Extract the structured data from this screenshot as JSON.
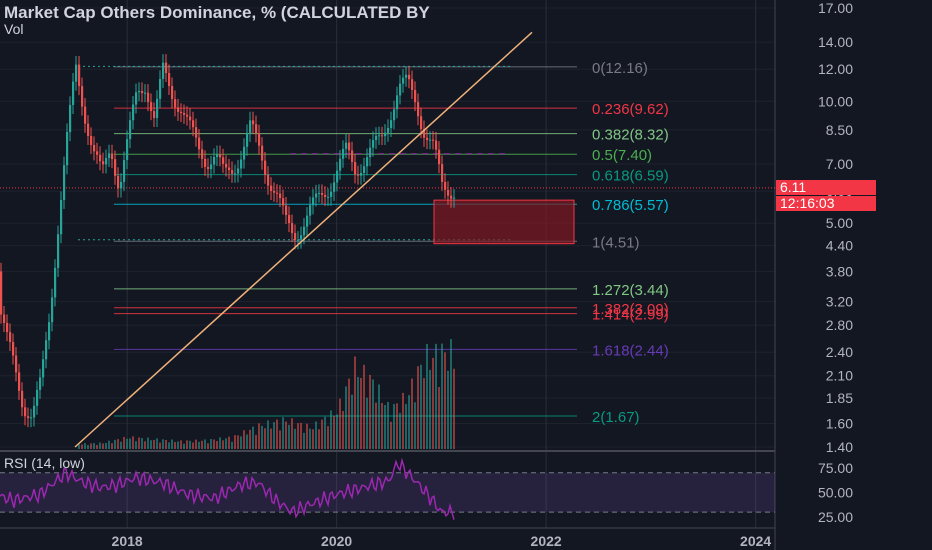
{
  "header": {
    "title": "Market Cap Others Dominance, % (CALCULATED BY",
    "volume_label": "Vol",
    "rsi_label": "RSI (14, low)"
  },
  "price_tags": {
    "last_price": "6.11",
    "countdown": "12:16:03"
  },
  "colors": {
    "background": "#131722",
    "up": "#26a69a",
    "down": "#ef5350",
    "rsi_line": "#9c27b0",
    "trendline": "#f0b27a",
    "zone": "#801922"
  },
  "chart_data": {
    "type": "candlestick",
    "title": "Market Cap Others Dominance, % (CALCULATED BY",
    "scale": "log",
    "ylim": [
      1.4,
      17.0
    ],
    "y_ticks": [
      "17.00",
      "14.00",
      "12.00",
      "10.00",
      "8.50",
      "7.00",
      "6.00",
      "5.00",
      "4.40",
      "3.80",
      "3.20",
      "2.80",
      "2.40",
      "2.10",
      "1.85",
      "1.60",
      "1.40"
    ],
    "x_ticks": [
      "2018",
      "2020",
      "2022",
      "2024"
    ],
    "grid": true,
    "last_value": 6.11,
    "fibonacci": [
      {
        "label": "0(12.16)",
        "level": 0,
        "value": 12.16
      },
      {
        "label": "0.236(9.62)",
        "level": 0.236,
        "value": 9.62
      },
      {
        "label": "0.382(8.32)",
        "level": 0.382,
        "value": 8.32
      },
      {
        "label": "0.5(7.40)",
        "level": 0.5,
        "value": 7.4
      },
      {
        "label": "0.618(6.59)",
        "level": 0.618,
        "value": 6.59
      },
      {
        "label": "0.786(5.57)",
        "level": 0.786,
        "value": 5.57
      },
      {
        "label": "1(4.51)",
        "level": 1,
        "value": 4.51
      },
      {
        "label": "1.272(3.44)",
        "level": 1.272,
        "value": 3.44
      },
      {
        "label": "1.382(3.09)",
        "level": 1.382,
        "value": 3.09
      },
      {
        "label": "1.414(2.99)",
        "level": 1.414,
        "value": 2.99
      },
      {
        "label": "1.618(2.44)",
        "level": 1.618,
        "value": 2.44
      },
      {
        "label": "2(1.67)",
        "level": 2,
        "value": 1.67
      }
    ],
    "price_series": [
      {
        "x": "2016-09",
        "y": 3.8
      },
      {
        "x": "2016-10",
        "y": 3.3
      },
      {
        "x": "2016-11",
        "y": 2.6
      },
      {
        "x": "2016-12",
        "y": 2.2
      },
      {
        "x": "2017-01",
        "y": 1.8
      },
      {
        "x": "2017-02",
        "y": 1.65
      },
      {
        "x": "2017-03",
        "y": 2.0
      },
      {
        "x": "2017-04",
        "y": 3.0
      },
      {
        "x": "2017-05",
        "y": 5.0
      },
      {
        "x": "2017-06",
        "y": 8.0
      },
      {
        "x": "2017-07",
        "y": 12.2
      },
      {
        "x": "2017-08",
        "y": 9.5
      },
      {
        "x": "2017-09",
        "y": 7.5
      },
      {
        "x": "2017-10",
        "y": 6.5
      },
      {
        "x": "2017-11",
        "y": 7.8
      },
      {
        "x": "2017-12",
        "y": 6.2
      },
      {
        "x": "2018-01",
        "y": 8.0
      },
      {
        "x": "2018-02",
        "y": 10.5
      },
      {
        "x": "2018-03",
        "y": 11.2
      },
      {
        "x": "2018-04",
        "y": 9.0
      },
      {
        "x": "2018-05",
        "y": 11.8
      },
      {
        "x": "2018-06",
        "y": 10.5
      },
      {
        "x": "2018-07",
        "y": 9.8
      },
      {
        "x": "2018-08",
        "y": 8.6
      },
      {
        "x": "2018-09",
        "y": 7.6
      },
      {
        "x": "2018-10",
        "y": 7.2
      },
      {
        "x": "2018-11",
        "y": 7.4
      },
      {
        "x": "2018-12",
        "y": 6.5
      },
      {
        "x": "2019-01",
        "y": 6.8
      },
      {
        "x": "2019-02",
        "y": 7.6
      },
      {
        "x": "2019-03",
        "y": 8.6
      },
      {
        "x": "2019-04",
        "y": 7.6
      },
      {
        "x": "2019-05",
        "y": 6.6
      },
      {
        "x": "2019-06",
        "y": 5.9
      },
      {
        "x": "2019-07",
        "y": 5.0
      },
      {
        "x": "2019-08",
        "y": 4.7
      },
      {
        "x": "2019-09",
        "y": 5.0
      },
      {
        "x": "2019-10",
        "y": 5.4
      },
      {
        "x": "2019-11",
        "y": 5.8
      },
      {
        "x": "2019-12",
        "y": 6.2
      },
      {
        "x": "2020-01",
        "y": 6.8
      },
      {
        "x": "2020-02",
        "y": 7.5
      },
      {
        "x": "2020-03",
        "y": 6.8
      },
      {
        "x": "2020-04",
        "y": 7.2
      },
      {
        "x": "2020-05",
        "y": 7.6
      },
      {
        "x": "2020-06",
        "y": 8.0
      },
      {
        "x": "2020-07",
        "y": 9.4
      },
      {
        "x": "2020-08",
        "y": 10.8
      },
      {
        "x": "2020-09",
        "y": 11.0
      },
      {
        "x": "2020-10",
        "y": 10.0
      },
      {
        "x": "2020-11",
        "y": 8.4
      },
      {
        "x": "2020-12",
        "y": 7.6
      },
      {
        "x": "2021-01",
        "y": 6.11
      }
    ],
    "volume_series": [
      {
        "x": "2017-04",
        "value": 3
      },
      {
        "x": "2017-07",
        "value": 5
      },
      {
        "x": "2017-10",
        "value": 6
      },
      {
        "x": "2018-01",
        "value": 12
      },
      {
        "x": "2018-04",
        "value": 10
      },
      {
        "x": "2018-07",
        "value": 8
      },
      {
        "x": "2018-10",
        "value": 9
      },
      {
        "x": "2019-01",
        "value": 12
      },
      {
        "x": "2019-04",
        "value": 24
      },
      {
        "x": "2019-07",
        "value": 30
      },
      {
        "x": "2019-10",
        "value": 22
      },
      {
        "x": "2020-01",
        "value": 40
      },
      {
        "x": "2020-03",
        "value": 85
      },
      {
        "x": "2020-05",
        "value": 70
      },
      {
        "x": "2020-07",
        "value": 40
      },
      {
        "x": "2020-09",
        "value": 55
      },
      {
        "x": "2020-11",
        "value": 95
      },
      {
        "x": "2021-01",
        "value": 100
      }
    ],
    "rsi": {
      "label": "RSI (14, low)",
      "ylim": [
        20,
        85
      ],
      "y_ticks": [
        "75.00",
        "50.00",
        "25.00"
      ],
      "bands": [
        70,
        30
      ],
      "series": [
        {
          "x": "2016-09",
          "y": 50
        },
        {
          "x": "2016-12",
          "y": 42
        },
        {
          "x": "2017-03",
          "y": 48
        },
        {
          "x": "2017-06",
          "y": 70
        },
        {
          "x": "2017-08",
          "y": 60
        },
        {
          "x": "2017-10",
          "y": 55
        },
        {
          "x": "2017-12",
          "y": 58
        },
        {
          "x": "2018-02",
          "y": 65
        },
        {
          "x": "2018-05",
          "y": 60
        },
        {
          "x": "2018-08",
          "y": 48
        },
        {
          "x": "2018-11",
          "y": 44
        },
        {
          "x": "2019-02",
          "y": 58
        },
        {
          "x": "2019-04",
          "y": 60
        },
        {
          "x": "2019-06",
          "y": 42
        },
        {
          "x": "2019-08",
          "y": 30
        },
        {
          "x": "2019-10",
          "y": 38
        },
        {
          "x": "2020-01",
          "y": 48
        },
        {
          "x": "2020-04",
          "y": 55
        },
        {
          "x": "2020-07",
          "y": 62
        },
        {
          "x": "2020-08",
          "y": 80
        },
        {
          "x": "2020-10",
          "y": 62
        },
        {
          "x": "2020-11",
          "y": 52
        },
        {
          "x": "2020-12",
          "y": 42
        },
        {
          "x": "2021-01",
          "y": 30
        }
      ]
    }
  }
}
